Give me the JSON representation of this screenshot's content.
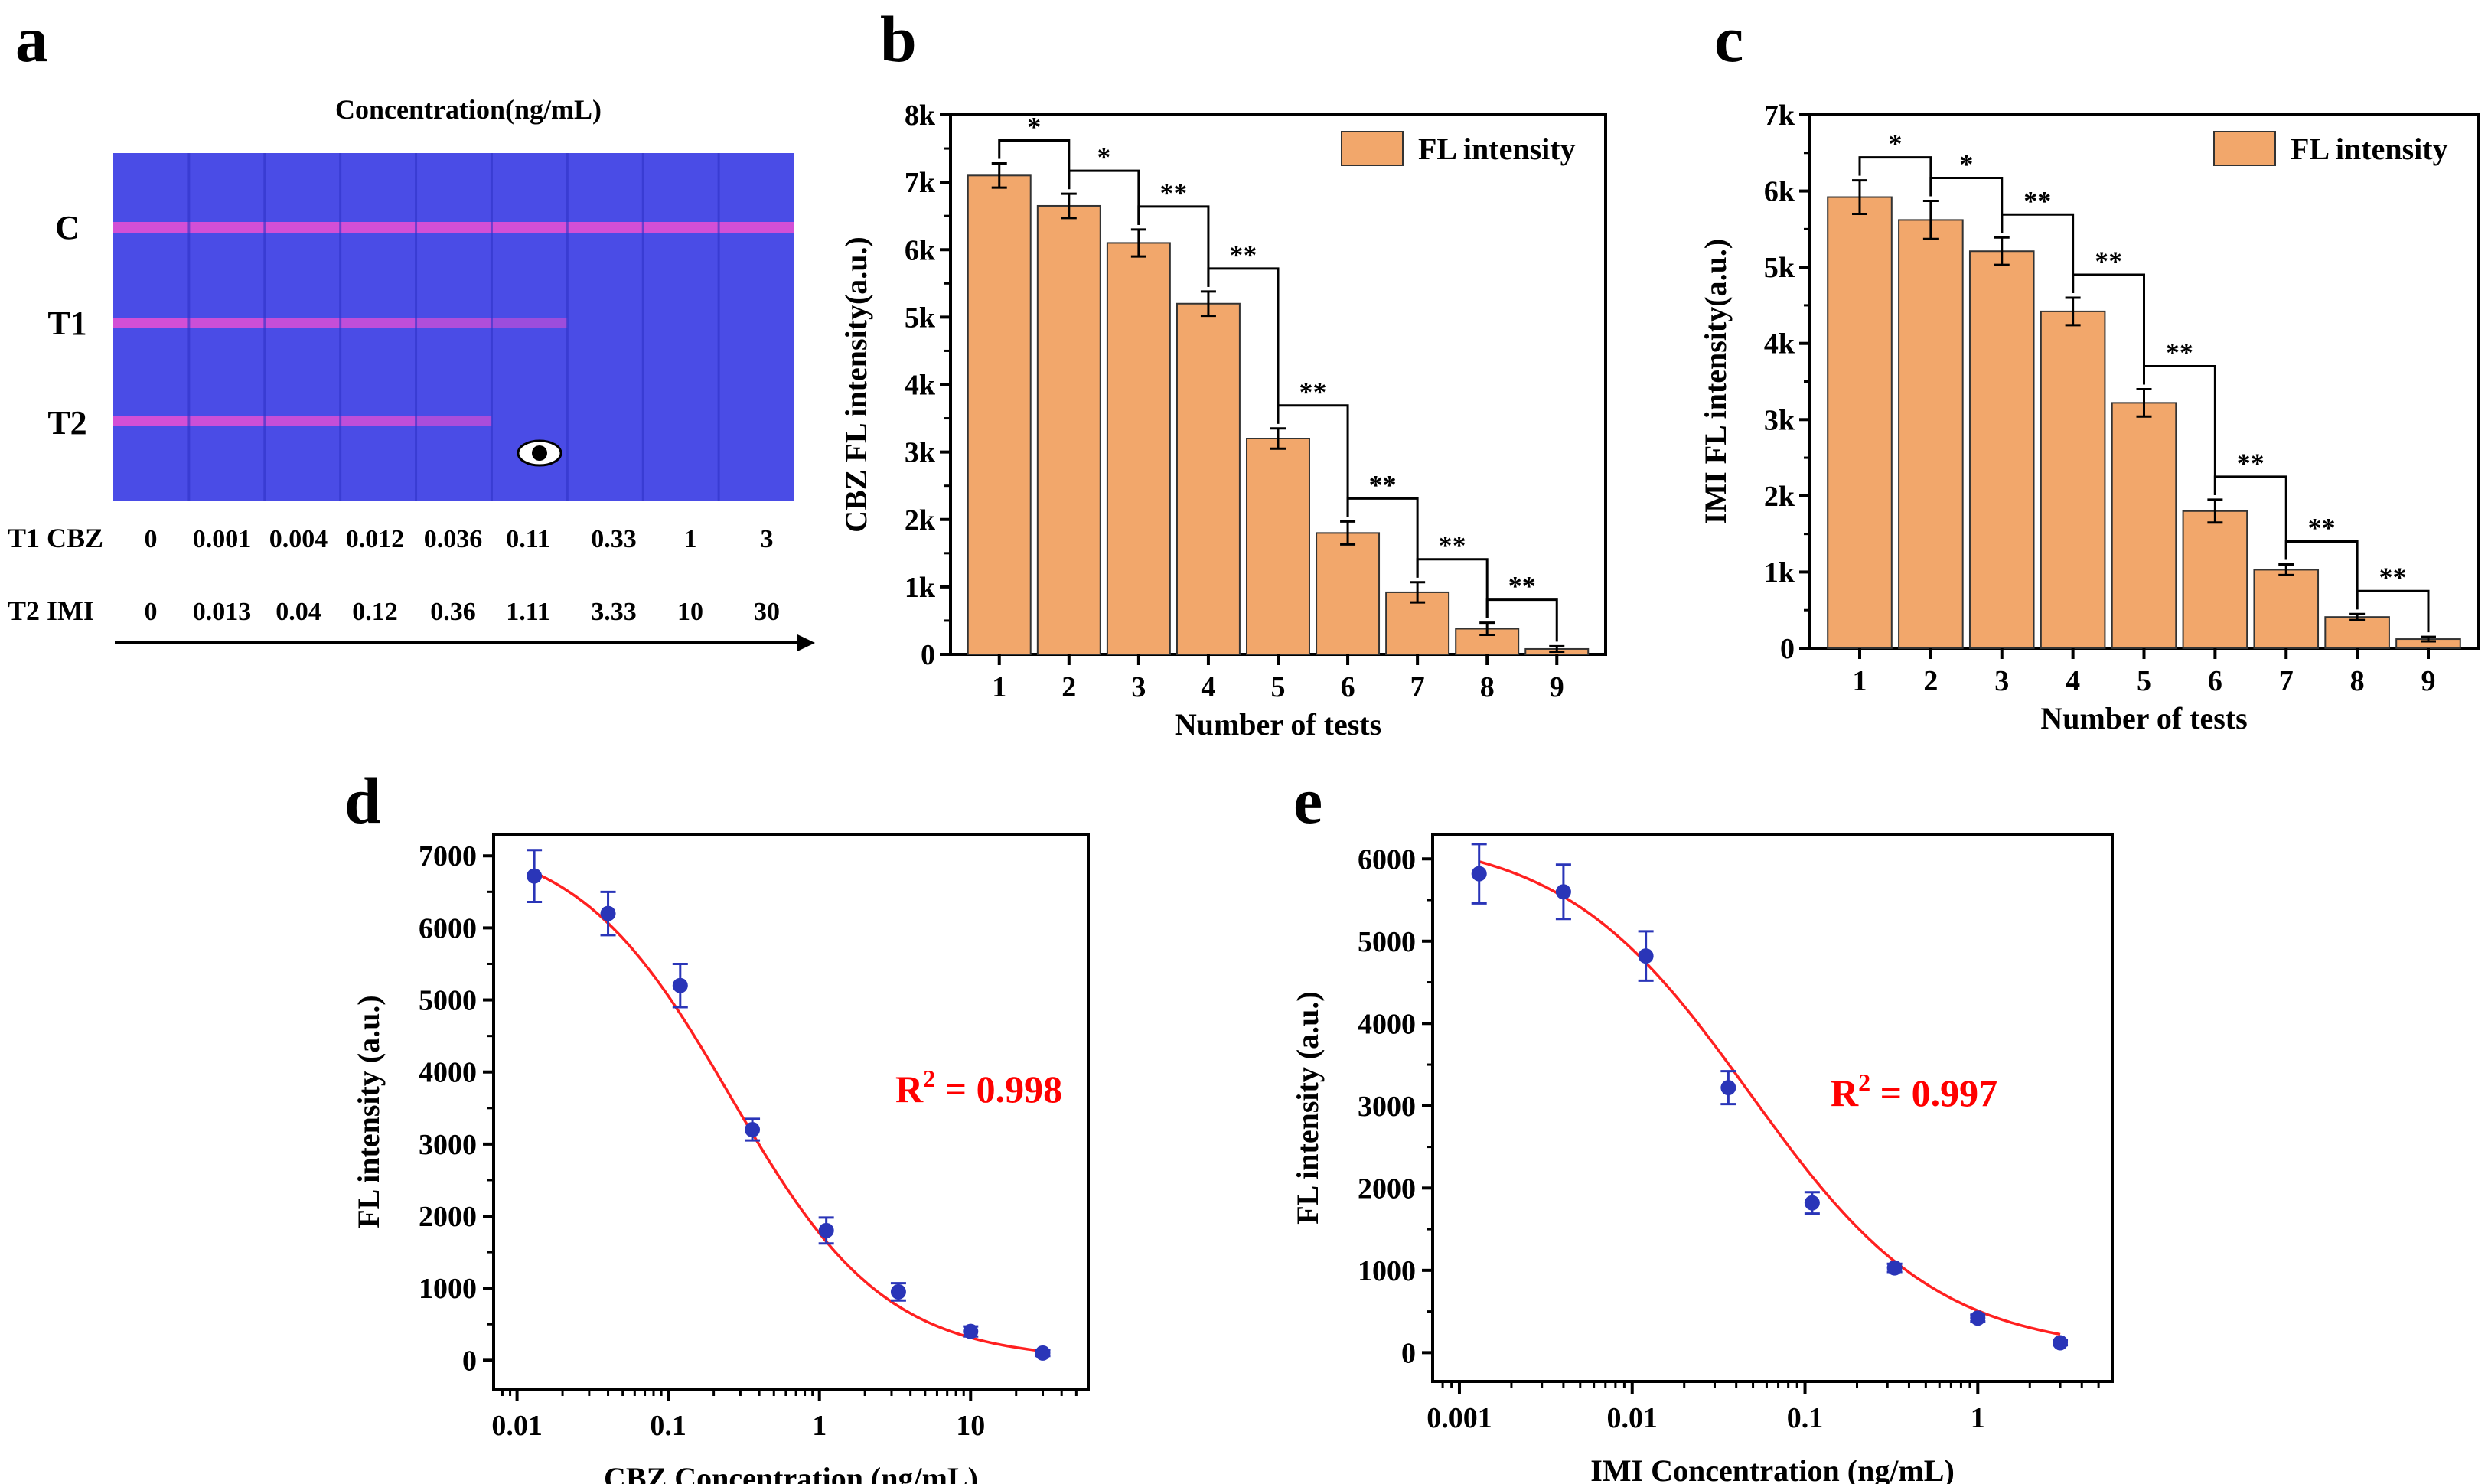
{
  "colors": {
    "bar_fill": "#f2a76b",
    "bar_stroke": "#333333",
    "strip_bg": "#4a4ce6",
    "band": "#d34fd6",
    "curve": "#ff2020",
    "point": "#2a35b8",
    "r2": "#ff0000"
  },
  "panels": {
    "a": {
      "letter": "a",
      "title": "Concentration(ng/mL)",
      "line_labels": [
        "C",
        "T1",
        "T2"
      ],
      "t1_label": "T1 CBZ",
      "t1_values": [
        "0",
        "0.001",
        "0.004",
        "0.012",
        "0.036",
        "0.11",
        "0.33",
        "1",
        "3"
      ],
      "t2_label": "T2 IMI",
      "t2_values": [
        "0",
        "0.013",
        "0.04",
        "0.12",
        "0.36",
        "1.11",
        "3.33",
        "10",
        "30"
      ],
      "strips_count": 9,
      "c_band_intensity": [
        1,
        1,
        1,
        1,
        1,
        1,
        1,
        1,
        1
      ],
      "t1_band_intensity": [
        1,
        0.95,
        0.9,
        0.85,
        0.75,
        0.6,
        0,
        0,
        0
      ],
      "t2_band_intensity": [
        1,
        0.95,
        0.9,
        0.85,
        0.7,
        0,
        0,
        0,
        0
      ],
      "visual_cutoff_icon": "eye-icon"
    },
    "d": {
      "letter": "d"
    },
    "e": {
      "letter": "e"
    }
  },
  "chart_data": [
    {
      "id": "b",
      "letter": "b",
      "type": "bar",
      "categories": [
        "1",
        "2",
        "3",
        "4",
        "5",
        "6",
        "7",
        "8",
        "9"
      ],
      "values": [
        7100,
        6650,
        6100,
        5200,
        3200,
        1800,
        920,
        380,
        80
      ],
      "errors": [
        180,
        180,
        200,
        180,
        150,
        170,
        150,
        90,
        40
      ],
      "legend": "FL intensity",
      "xlabel": "Number of tests",
      "ylabel": "CBZ FL intensity(a.u.)",
      "ylim": [
        0,
        8000
      ],
      "yticks": [
        0,
        1000,
        2000,
        3000,
        4000,
        5000,
        6000,
        7000,
        8000
      ],
      "ytick_labels": [
        "0",
        "1k",
        "2k",
        "3k",
        "4k",
        "5k",
        "6k",
        "7k",
        "8k"
      ],
      "significance": [
        "*",
        "*",
        "**",
        "**",
        "**",
        "**",
        "**",
        "**"
      ]
    },
    {
      "id": "c",
      "letter": "c",
      "type": "bar",
      "categories": [
        "1",
        "2",
        "3",
        "4",
        "5",
        "6",
        "7",
        "8",
        "9"
      ],
      "values": [
        5920,
        5620,
        5210,
        4420,
        3220,
        1800,
        1030,
        410,
        120
      ],
      "errors": [
        220,
        250,
        180,
        180,
        180,
        150,
        70,
        40,
        30
      ],
      "legend": "FL intensity",
      "xlabel": "Number of tests",
      "ylabel": "IMI FL intensity(a.u.)",
      "ylim": [
        0,
        7000
      ],
      "yticks": [
        0,
        1000,
        2000,
        3000,
        4000,
        5000,
        6000,
        7000
      ],
      "ytick_labels": [
        "0",
        "1k",
        "2k",
        "3k",
        "4k",
        "5k",
        "6k",
        "7k"
      ],
      "significance": [
        "*",
        "*",
        "**",
        "**",
        "**",
        "**",
        "**",
        "**"
      ]
    },
    {
      "id": "d",
      "letter": "d",
      "type": "scatter",
      "x": [
        0.013,
        0.04,
        0.12,
        0.36,
        1.11,
        3.33,
        10,
        30
      ],
      "y": [
        6720,
        6200,
        5200,
        3200,
        1800,
        950,
        400,
        100
      ],
      "errors": [
        360,
        300,
        300,
        150,
        180,
        120,
        70,
        40
      ],
      "fit": {
        "A1": 7300,
        "A2": 0,
        "x0": 0.26,
        "p": 0.85
      },
      "r2_prefix": "R",
      "r2_sup": "2",
      "r2_value": " = 0.998",
      "xlabel": "CBZ Concentration (ng/mL)",
      "ylabel": "FL intensity (a.u.)",
      "xscale": "log",
      "xlim": [
        0.007,
        60
      ],
      "ylim": [
        -400,
        7300
      ],
      "xticks": [
        0.01,
        0.1,
        1,
        10
      ],
      "xtick_labels": [
        "0.01",
        "0.1",
        "1",
        "10"
      ],
      "yticks": [
        0,
        1000,
        2000,
        3000,
        4000,
        5000,
        6000,
        7000
      ],
      "ytick_labels": [
        "0",
        "1000",
        "2000",
        "3000",
        "4000",
        "5000",
        "6000",
        "7000"
      ]
    },
    {
      "id": "e",
      "letter": "e",
      "type": "scatter",
      "x": [
        0.0013,
        0.004,
        0.012,
        0.036,
        0.11,
        0.33,
        1,
        3
      ],
      "y": [
        5820,
        5600,
        4820,
        3220,
        1820,
        1030,
        420,
        120
      ],
      "errors": [
        360,
        330,
        300,
        200,
        130,
        50,
        40,
        30
      ],
      "fit": {
        "A1": 6300,
        "A2": 0,
        "x0": 0.048,
        "p": 0.8
      },
      "r2_prefix": "R",
      "r2_sup": "2",
      "r2_value": " = 0.997",
      "xlabel": "IMI Concentration (ng/mL)",
      "ylabel": "FL intensity (a.u.)",
      "xscale": "log",
      "xlim": [
        0.0007,
        6
      ],
      "ylim": [
        -350,
        6300
      ],
      "xticks": [
        0.001,
        0.01,
        0.1,
        1
      ],
      "xtick_labels": [
        "0.001",
        "0.01",
        "0.1",
        "1"
      ],
      "yticks": [
        0,
        1000,
        2000,
        3000,
        4000,
        5000,
        6000
      ],
      "ytick_labels": [
        "0",
        "1000",
        "2000",
        "3000",
        "4000",
        "5000",
        "6000"
      ]
    }
  ]
}
